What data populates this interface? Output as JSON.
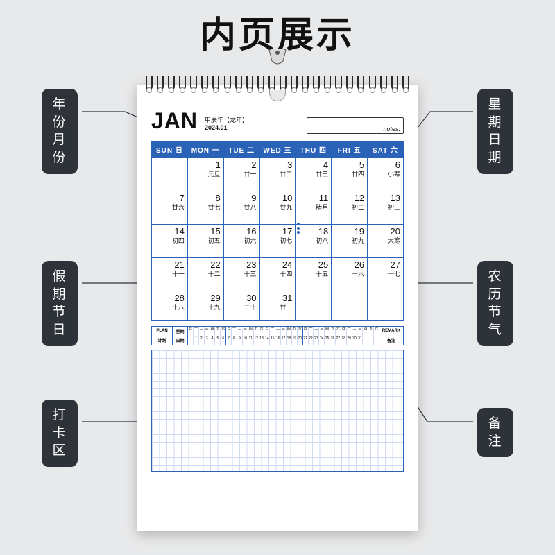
{
  "title": "内页展示",
  "month": {
    "abbr": "JAN",
    "lunar_year": "甲辰年【龙年】",
    "ym": "2024.01"
  },
  "notes_label": "notes.",
  "weekdays": [
    "SUN 日",
    "MON 一",
    "TUE 二",
    "WED 三",
    "THU 四",
    "FRI 五",
    "SAT 六"
  ],
  "rows": [
    [
      null,
      {
        "n": "1",
        "s": "元旦"
      },
      {
        "n": "2",
        "s": "廿一"
      },
      {
        "n": "3",
        "s": "廿二"
      },
      {
        "n": "4",
        "s": "廿三"
      },
      {
        "n": "5",
        "s": "廿四"
      },
      {
        "n": "6",
        "s": "小寒"
      }
    ],
    [
      {
        "n": "7",
        "s": "廿六"
      },
      {
        "n": "8",
        "s": "廿七"
      },
      {
        "n": "9",
        "s": "廿八"
      },
      {
        "n": "10",
        "s": "廿九"
      },
      {
        "n": "11",
        "s": "腊月"
      },
      {
        "n": "12",
        "s": "初二"
      },
      {
        "n": "13",
        "s": "初三"
      }
    ],
    [
      {
        "n": "14",
        "s": "初四"
      },
      {
        "n": "15",
        "s": "初五"
      },
      {
        "n": "16",
        "s": "初六"
      },
      {
        "n": "17",
        "s": "初七"
      },
      {
        "n": "18",
        "s": "初八"
      },
      {
        "n": "19",
        "s": "初九"
      },
      {
        "n": "20",
        "s": "大寒"
      }
    ],
    [
      {
        "n": "21",
        "s": "十一"
      },
      {
        "n": "22",
        "s": "十二"
      },
      {
        "n": "23",
        "s": "十三"
      },
      {
        "n": "24",
        "s": "十四"
      },
      {
        "n": "25",
        "s": "十五"
      },
      {
        "n": "26",
        "s": "十六"
      },
      {
        "n": "27",
        "s": "十七"
      }
    ],
    [
      {
        "n": "28",
        "s": "十八"
      },
      {
        "n": "29",
        "s": "十九"
      },
      {
        "n": "30",
        "s": "二十"
      },
      {
        "n": "31",
        "s": "廿一"
      },
      null,
      null,
      null
    ]
  ],
  "tracker": {
    "left": [
      "PLAN",
      "计划"
    ],
    "top_labels": [
      "星期",
      "日期"
    ],
    "right": [
      "REMARK",
      "备注"
    ],
    "weekday_cn": [
      "日",
      "一",
      "二",
      "三",
      "四",
      "五",
      "六"
    ],
    "weeks": [
      [
        " ",
        "1",
        "2",
        "3",
        "4",
        "5",
        "6"
      ],
      [
        "7",
        "8",
        "9",
        "10",
        "11",
        "12",
        "13"
      ],
      [
        "14",
        "15",
        "16",
        "17",
        "18",
        "19",
        "20"
      ],
      [
        "21",
        "22",
        "23",
        "24",
        "25",
        "26",
        "27"
      ],
      [
        "28",
        "29",
        "30",
        "31",
        " ",
        " ",
        " "
      ]
    ]
  },
  "callouts": {
    "left1": "年份月份",
    "left2": "假期节日",
    "left3": "打卡区",
    "right1": "星期日期",
    "right2": "农历节气",
    "right3": "备注"
  },
  "colors": {
    "accent": "#2a62b8",
    "pill": "#2e333a",
    "bg": "#e8e9ea"
  }
}
